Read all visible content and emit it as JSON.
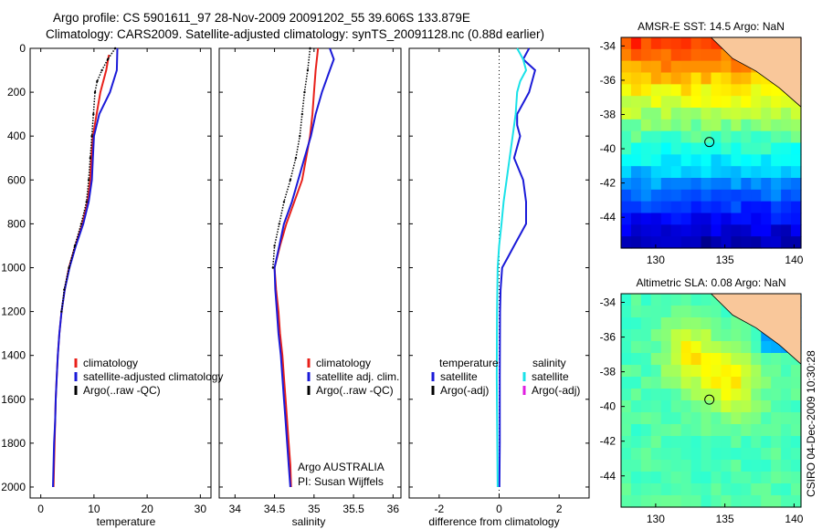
{
  "header": {
    "line1": "Argo profile: CS 5901611_97 28-Nov-2009 20091202_55 39.606S 133.879E",
    "line2": "Climatology: CARS2009. Satellite-adjusted climatology: synTS_20091128.nc (0.88d earlier)"
  },
  "colors": {
    "red": "#e8201a",
    "blue": "#1a1ad8",
    "black": "#000000",
    "cyan": "#19e2e8",
    "magenta": "#e01ee0"
  },
  "chart_data": [
    {
      "type": "line",
      "xlabel": "temperature",
      "xlim": [
        -2,
        32
      ],
      "ylim": [
        2050,
        0
      ],
      "xticks": [
        0,
        10,
        20,
        30
      ],
      "yticks": [
        0,
        200,
        400,
        600,
        800,
        1000,
        1200,
        1400,
        1600,
        1800,
        2000
      ],
      "legend": [
        "climatology",
        "satellite-adjusted climatology",
        "Argo(..raw -QC)"
      ],
      "series": [
        {
          "color": "red",
          "points": [
            [
              12.8,
              30
            ],
            [
              12.3,
              100
            ],
            [
              11.2,
              200
            ],
            [
              10.5,
              300
            ],
            [
              9.8,
              400
            ],
            [
              9.5,
              500
            ],
            [
              9.3,
              600
            ],
            [
              8.8,
              700
            ],
            [
              7.8,
              800
            ],
            [
              6.5,
              900
            ],
            [
              5.3,
              1000
            ],
            [
              4.5,
              1100
            ],
            [
              3.9,
              1200
            ],
            [
              3.5,
              1300
            ],
            [
              3.2,
              1400
            ],
            [
              3.0,
              1500
            ],
            [
              2.8,
              1600
            ],
            [
              2.7,
              1700
            ],
            [
              2.6,
              1800
            ],
            [
              2.5,
              1900
            ],
            [
              2.4,
              2000
            ]
          ]
        },
        {
          "color": "blue",
          "points": [
            [
              14.4,
              0
            ],
            [
              14.3,
              100
            ],
            [
              13.0,
              200
            ],
            [
              11.0,
              300
            ],
            [
              10.0,
              400
            ],
            [
              9.8,
              500
            ],
            [
              9.6,
              600
            ],
            [
              9.0,
              700
            ],
            [
              8.0,
              800
            ],
            [
              6.6,
              900
            ],
            [
              5.4,
              1000
            ],
            [
              4.5,
              1100
            ],
            [
              3.9,
              1200
            ],
            [
              3.5,
              1300
            ],
            [
              3.2,
              1400
            ],
            [
              3.0,
              1500
            ],
            [
              2.8,
              1600
            ],
            [
              2.7,
              1700
            ],
            [
              2.5,
              1800
            ],
            [
              2.4,
              1900
            ],
            [
              2.3,
              2000
            ]
          ]
        },
        {
          "color": "black",
          "style": "dotted",
          "points": [
            [
              14.0,
              0
            ],
            [
              12.6,
              50
            ],
            [
              11.5,
              100
            ],
            [
              10.6,
              150
            ],
            [
              10.2,
              200
            ],
            [
              9.9,
              300
            ],
            [
              9.6,
              400
            ],
            [
              9.3,
              500
            ],
            [
              9.0,
              600
            ],
            [
              8.6,
              700
            ],
            [
              7.6,
              800
            ],
            [
              6.4,
              900
            ],
            [
              5.3,
              1000
            ],
            [
              4.4,
              1100
            ],
            [
              3.9,
              1200
            ]
          ]
        }
      ]
    },
    {
      "type": "line",
      "xlabel": "salinity",
      "xlim": [
        33.8,
        36.1
      ],
      "ylim": [
        2050,
        0
      ],
      "xticks": [
        34,
        34.5,
        35,
        35.5,
        36
      ],
      "legend": [
        "climatology",
        "satellite adj. clim.",
        "Argo(..raw -QC)"
      ],
      "annotation": [
        "Argo AUSTRALIA",
        "PI: Susan Wijffels"
      ],
      "series": [
        {
          "color": "red",
          "points": [
            [
              35.05,
              0
            ],
            [
              35.02,
              100
            ],
            [
              35.0,
              200
            ],
            [
              34.98,
              300
            ],
            [
              34.95,
              400
            ],
            [
              34.9,
              500
            ],
            [
              34.85,
              600
            ],
            [
              34.75,
              700
            ],
            [
              34.65,
              800
            ],
            [
              34.57,
              900
            ],
            [
              34.5,
              1000
            ],
            [
              34.52,
              1100
            ],
            [
              34.55,
              1200
            ],
            [
              34.57,
              1300
            ],
            [
              34.6,
              1400
            ],
            [
              34.62,
              1500
            ],
            [
              34.64,
              1600
            ],
            [
              34.66,
              1700
            ],
            [
              34.68,
              1800
            ],
            [
              34.7,
              1900
            ],
            [
              34.71,
              2000
            ]
          ]
        },
        {
          "color": "blue",
          "points": [
            [
              35.2,
              0
            ],
            [
              35.25,
              50
            ],
            [
              35.2,
              100
            ],
            [
              35.1,
              200
            ],
            [
              35.02,
              300
            ],
            [
              34.96,
              400
            ],
            [
              34.88,
              500
            ],
            [
              34.8,
              600
            ],
            [
              34.72,
              700
            ],
            [
              34.62,
              800
            ],
            [
              34.56,
              900
            ],
            [
              34.5,
              1000
            ],
            [
              34.51,
              1100
            ],
            [
              34.53,
              1200
            ],
            [
              34.55,
              1300
            ],
            [
              34.58,
              1400
            ],
            [
              34.6,
              1500
            ],
            [
              34.62,
              1600
            ],
            [
              34.64,
              1700
            ],
            [
              34.66,
              1800
            ],
            [
              34.68,
              1900
            ],
            [
              34.7,
              2000
            ]
          ]
        },
        {
          "color": "black",
          "style": "dotted",
          "points": [
            [
              34.95,
              0
            ],
            [
              34.92,
              100
            ],
            [
              34.88,
              200
            ],
            [
              34.85,
              300
            ],
            [
              34.82,
              400
            ],
            [
              34.77,
              500
            ],
            [
              34.7,
              600
            ],
            [
              34.62,
              700
            ],
            [
              34.56,
              800
            ],
            [
              34.5,
              900
            ],
            [
              34.48,
              1000
            ]
          ]
        }
      ]
    },
    {
      "type": "line",
      "xlabel": "difference from climatology",
      "xlim": [
        -3,
        3
      ],
      "ylim": [
        2050,
        0
      ],
      "xticks": [
        -2,
        0,
        2
      ],
      "legend_left": {
        "title": "temperature",
        "items": [
          "satellite",
          "Argo(-adj)"
        ]
      },
      "legend_right": {
        "title": "salinity",
        "items": [
          "satellite",
          "Argo(-adj)"
        ]
      },
      "series": [
        {
          "color": "blue",
          "points": [
            [
              1.0,
              0
            ],
            [
              0.8,
              50
            ],
            [
              1.2,
              100
            ],
            [
              1.0,
              200
            ],
            [
              0.6,
              300
            ],
            [
              0.6,
              350
            ],
            [
              0.7,
              400
            ],
            [
              0.5,
              500
            ],
            [
              0.8,
              600
            ],
            [
              0.9,
              700
            ],
            [
              0.9,
              800
            ],
            [
              0.5,
              900
            ],
            [
              0.3,
              950
            ],
            [
              0.1,
              1000
            ],
            [
              0.05,
              1100
            ],
            [
              0.03,
              1200
            ],
            [
              0.02,
              1500
            ],
            [
              0.02,
              1800
            ],
            [
              0.01,
              2000
            ]
          ]
        },
        {
          "color": "cyan",
          "points": [
            [
              0.6,
              0
            ],
            [
              0.8,
              50
            ],
            [
              0.9,
              100
            ],
            [
              0.7,
              150
            ],
            [
              0.6,
              200
            ],
            [
              0.55,
              300
            ],
            [
              0.45,
              400
            ],
            [
              0.35,
              500
            ],
            [
              0.25,
              600
            ],
            [
              0.15,
              700
            ],
            [
              0.08,
              800
            ],
            [
              0.0,
              900
            ],
            [
              -0.05,
              1000
            ],
            [
              -0.07,
              1200
            ],
            [
              -0.08,
              1500
            ],
            [
              -0.06,
              1800
            ],
            [
              -0.05,
              2000
            ]
          ]
        }
      ]
    },
    {
      "type": "heatmap",
      "title": "AMSR-E SST: 14.5 Argo: NaN",
      "xlim": [
        127.5,
        140.5
      ],
      "ylim": [
        -45.8,
        -33.5
      ],
      "xticks": [
        130,
        135,
        140
      ],
      "yticks": [
        -34,
        -36,
        -38,
        -40,
        -42,
        -44
      ],
      "marker": [
        133.879,
        -39.606
      ]
    },
    {
      "type": "heatmap",
      "title": "Altimetric SLA: 0.08 Argo: NaN",
      "xlim": [
        127.5,
        140.5
      ],
      "ylim": [
        -45.8,
        -33.5
      ],
      "xticks": [
        130,
        135,
        140
      ],
      "yticks": [
        -34,
        -36,
        -38,
        -40,
        -42,
        -44
      ],
      "marker": [
        133.879,
        -39.606
      ]
    }
  ],
  "side_label": "CSIRO 04-Dec-2009 10:30:28"
}
